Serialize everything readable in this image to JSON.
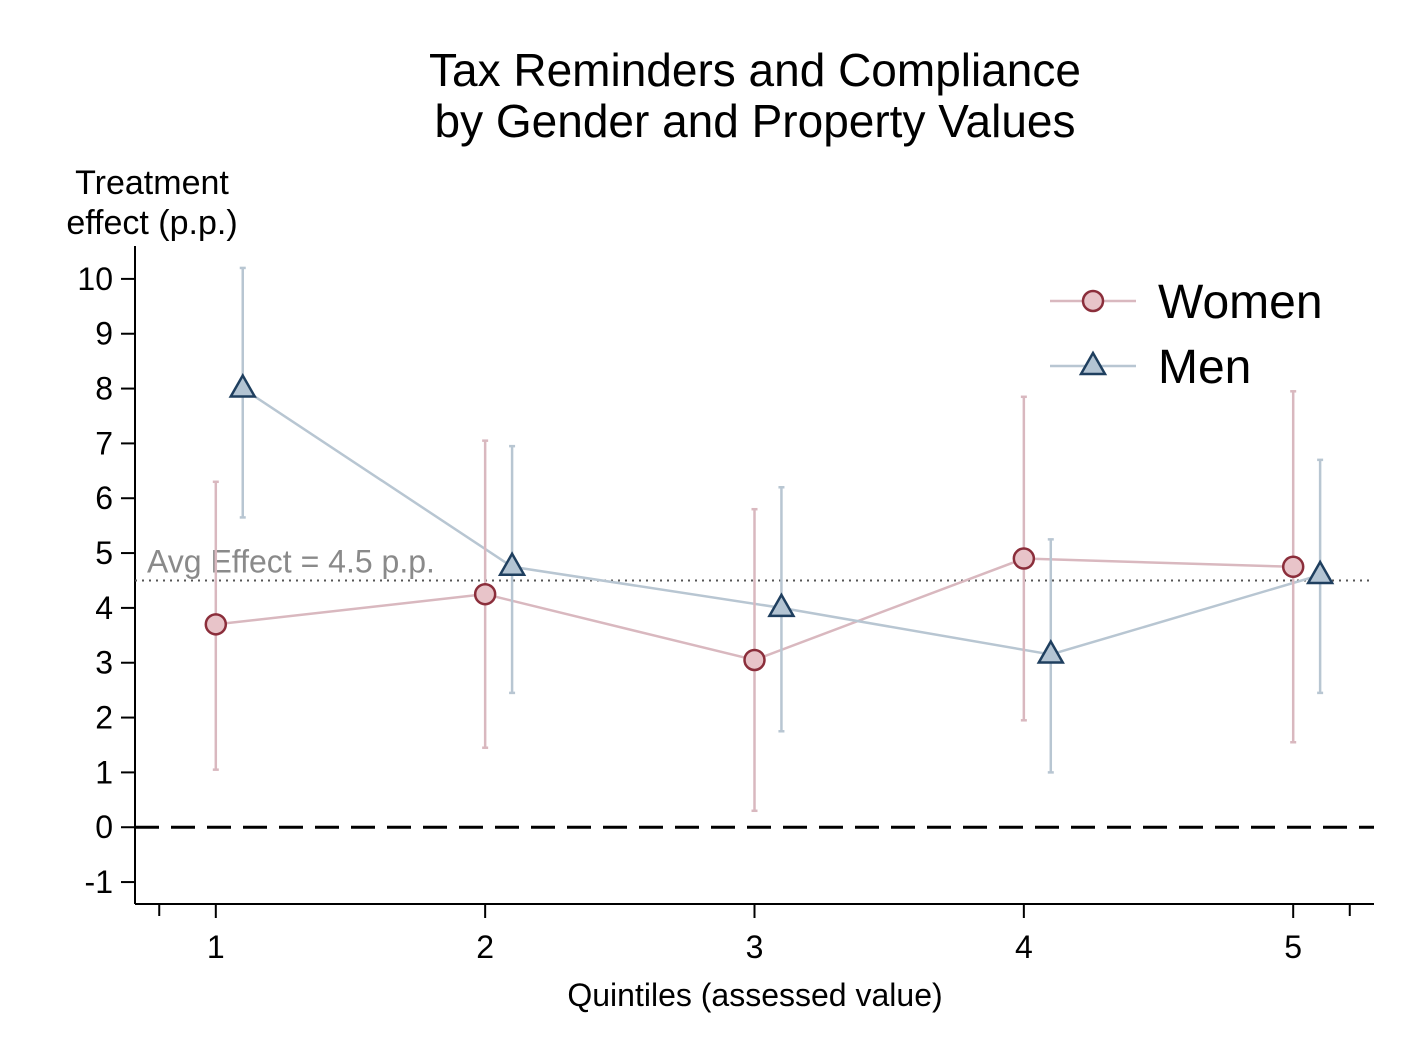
{
  "chart_data": {
    "type": "scatter",
    "title": [
      "Tax Reminders and Compliance",
      "by Gender and Property Values"
    ],
    "ylabel": [
      "Treatment",
      "effect (p.p.)"
    ],
    "xlabel": "Quintiles (assessed value)",
    "categories": [
      "1",
      "2",
      "3",
      "4",
      "5"
    ],
    "x": [
      1,
      2,
      3,
      4,
      5
    ],
    "xlim": [
      0.7,
      5.3
    ],
    "ylim": [
      -1.4,
      10.6
    ],
    "yticks": [
      10,
      9,
      8,
      7,
      6,
      5,
      4,
      3,
      2,
      1,
      0,
      -1
    ],
    "grid": false,
    "legend_position": "top-right",
    "reference_lines": [
      {
        "label": "Avg Effect = 4.5 p.p.",
        "value": 4.5,
        "style": "dotted",
        "color": "#555555"
      },
      {
        "label": "",
        "value": 0,
        "style": "dashed",
        "color": "#000000"
      }
    ],
    "series": [
      {
        "name": "Women",
        "marker": "circle",
        "x_offset": 0,
        "line_color": "#d9b8bf",
        "marker_fill": "#e8c4c9",
        "marker_stroke": "#8b2e3b",
        "values": [
          3.7,
          4.25,
          3.05,
          4.9,
          4.75
        ],
        "ci_low": [
          1.05,
          1.45,
          0.3,
          1.95,
          1.55
        ],
        "ci_high": [
          6.3,
          7.05,
          5.8,
          7.85,
          7.95
        ]
      },
      {
        "name": "Men",
        "marker": "triangle",
        "x_offset": 0.1,
        "line_color": "#b8c6d2",
        "marker_fill": "#b3c4d3",
        "marker_stroke": "#1f3f5f",
        "values": [
          8.0,
          4.75,
          4.0,
          3.15,
          4.6
        ],
        "ci_low": [
          5.65,
          2.45,
          1.75,
          1.0,
          2.45
        ],
        "ci_high": [
          10.2,
          6.95,
          6.2,
          5.25,
          6.7
        ]
      }
    ]
  }
}
